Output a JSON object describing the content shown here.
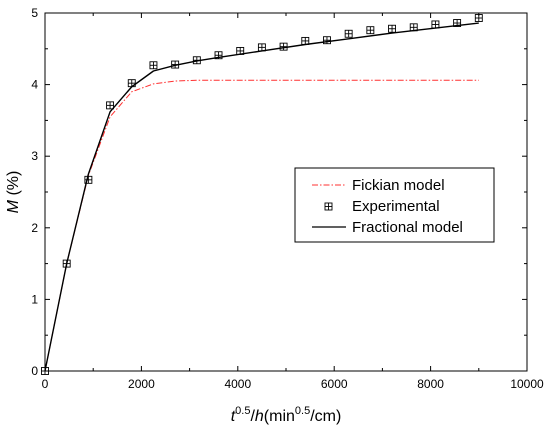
{
  "chart_data": {
    "type": "line",
    "xlim": [
      0,
      10000
    ],
    "ylim": [
      0,
      5
    ],
    "x_ticks": [
      "0",
      "2000",
      "4000",
      "6000",
      "8000",
      "10000"
    ],
    "y_ticks": [
      "0",
      "1",
      "2",
      "3",
      "4",
      "5"
    ],
    "xlabel": {
      "t_base": "t",
      "t_sup": "0.5",
      "slash": "/",
      "h": "h",
      "open": "(min",
      "min_sup": "0.5",
      "close": "/cm)"
    },
    "ylabel": {
      "symbol": "M",
      "unit": " (%)"
    },
    "legend_position": "right-center",
    "grid": false,
    "series": [
      {
        "name": "Fickian model",
        "style": "dash-dot",
        "color": "#ff3030",
        "x": [
          0,
          450,
          900,
          1350,
          1800,
          2250,
          2700,
          3150,
          3600,
          4500,
          5400,
          6300,
          7200,
          8100,
          9000
        ],
        "y": [
          0,
          1.5,
          2.73,
          3.55,
          3.9,
          4.01,
          4.05,
          4.06,
          4.06,
          4.06,
          4.06,
          4.06,
          4.06,
          4.06,
          4.06
        ]
      },
      {
        "name": "Experimental",
        "style": "marker",
        "marker": "boxed-plus",
        "color": "#000000",
        "x": [
          0,
          450,
          900,
          1350,
          1800,
          2250,
          2700,
          3150,
          3600,
          4050,
          4500,
          4950,
          5400,
          5850,
          6300,
          6750,
          7200,
          7650,
          8100,
          8550,
          9000
        ],
        "y": [
          0,
          1.5,
          2.67,
          3.71,
          4.02,
          4.27,
          4.28,
          4.34,
          4.41,
          4.47,
          4.52,
          4.53,
          4.61,
          4.62,
          4.71,
          4.76,
          4.78,
          4.8,
          4.84,
          4.86,
          4.93
        ]
      },
      {
        "name": "Fractional model",
        "style": "solid",
        "color": "#000000",
        "x": [
          0,
          450,
          900,
          1350,
          1800,
          2250,
          2700,
          3150,
          3600,
          4500,
          5400,
          6300,
          7200,
          8100,
          9000
        ],
        "y": [
          0,
          1.5,
          2.75,
          3.62,
          3.97,
          4.19,
          4.27,
          4.33,
          4.38,
          4.47,
          4.56,
          4.64,
          4.72,
          4.79,
          4.86
        ]
      }
    ]
  }
}
